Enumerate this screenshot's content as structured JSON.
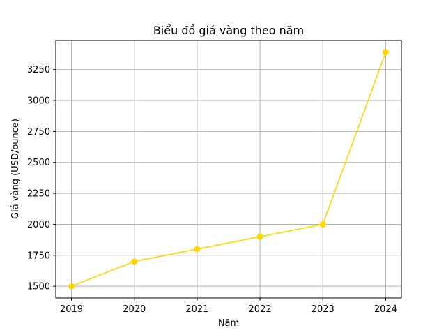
{
  "chart_data": {
    "type": "line",
    "title": "Biểu đồ giá vàng theo năm",
    "xlabel": "Năm",
    "ylabel": "Giá vàng (USD/ounce)",
    "x": [
      2019,
      2020,
      2021,
      2022,
      2023,
      2024
    ],
    "series": [
      {
        "values": [
          1500,
          1700,
          1800,
          1900,
          2000,
          3390
        ],
        "color": "#FFD700"
      }
    ],
    "xlim": [
      2018.75,
      2024.25
    ],
    "ylim": [
      1405,
      3485
    ],
    "yticks": [
      1500,
      1750,
      2000,
      2250,
      2500,
      2750,
      3000,
      3250
    ],
    "xticks": [
      2019,
      2020,
      2021,
      2022,
      2023,
      2024
    ],
    "grid": true,
    "marker": "circle"
  }
}
